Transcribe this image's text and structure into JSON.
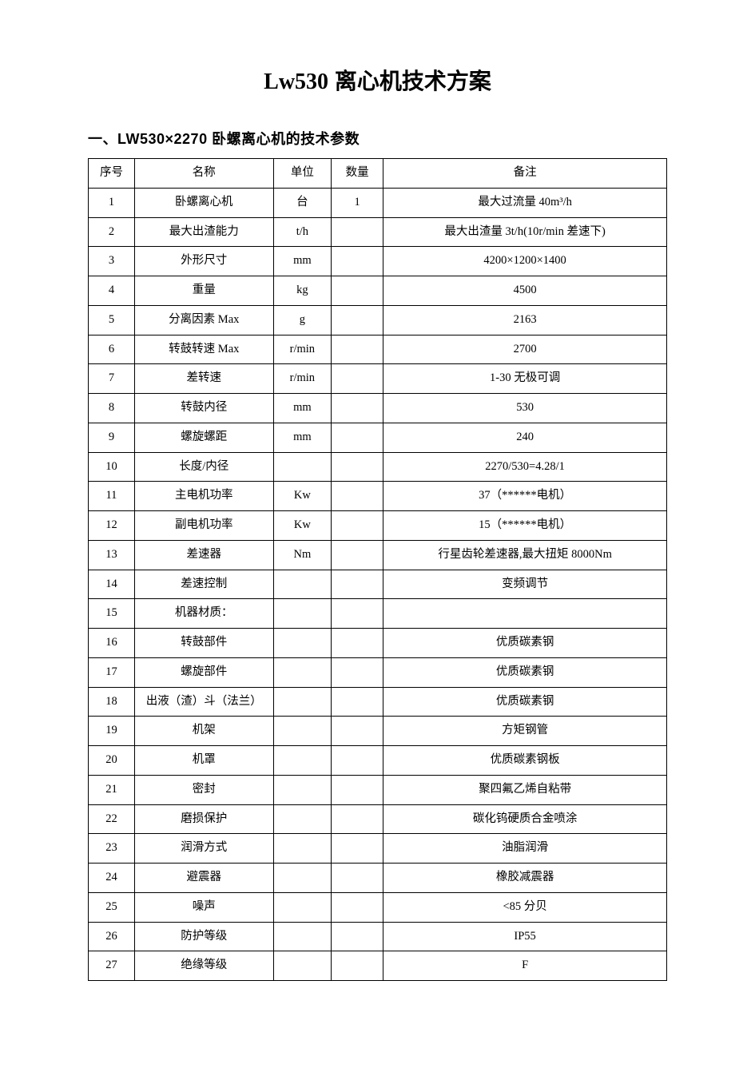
{
  "title_model": "Lw530",
  "title_rest": " 离心机技术方案",
  "section_heading": "一、LW530×2270 卧螺离心机的技术参数",
  "table": {
    "columns": [
      "序号",
      "名称",
      "单位",
      "数量",
      "备注"
    ],
    "col_widths_pct": [
      8,
      24,
      10,
      9,
      49
    ],
    "border_color": "#000000",
    "background_color": "#ffffff",
    "font_size_pt": 14.5,
    "rows": [
      {
        "seq": "1",
        "name": "卧螺离心机",
        "unit": "台",
        "qty": "1",
        "note": "最大过流量 40m³/h"
      },
      {
        "seq": "2",
        "name": "最大出渣能力",
        "unit": "t/h",
        "qty": "",
        "note": "最大出渣量 3t/h(10r/min 差速下)"
      },
      {
        "seq": "3",
        "name": "外形尺寸",
        "unit": "mm",
        "qty": "",
        "note": "4200×1200×1400"
      },
      {
        "seq": "4",
        "name": "重量",
        "unit": "kg",
        "qty": "",
        "note": "4500"
      },
      {
        "seq": "5",
        "name": "分离因素 Max",
        "unit": "g",
        "qty": "",
        "note": "2163"
      },
      {
        "seq": "6",
        "name": "转鼓转速 Max",
        "unit": "r/min",
        "qty": "",
        "note": "2700"
      },
      {
        "seq": "7",
        "name": "差转速",
        "unit": "r/min",
        "qty": "",
        "note": "1-30 无极可调"
      },
      {
        "seq": "8",
        "name": "转鼓内径",
        "unit": "mm",
        "qty": "",
        "note": "530"
      },
      {
        "seq": "9",
        "name": "螺旋螺距",
        "unit": "mm",
        "qty": "",
        "note": "240"
      },
      {
        "seq": "10",
        "name": "长度/内径",
        "unit": "",
        "qty": "",
        "note": "2270/530=4.28/1"
      },
      {
        "seq": "11",
        "name": "主电机功率",
        "unit": "Kw",
        "qty": "",
        "note": "37（******电机）"
      },
      {
        "seq": "12",
        "name": "副电机功率",
        "unit": "Kw",
        "qty": "",
        "note": "15（******电机）"
      },
      {
        "seq": "13",
        "name": "差速器",
        "unit": "Nm",
        "qty": "",
        "note": "行星齿轮差速器,最大扭矩 8000Nm"
      },
      {
        "seq": "14",
        "name": "差速控制",
        "unit": "",
        "qty": "",
        "note": "变频调节"
      },
      {
        "seq": "15",
        "name": "机器材质：",
        "unit": "",
        "qty": "",
        "note": ""
      },
      {
        "seq": "16",
        "name": "转鼓部件",
        "unit": "",
        "qty": "",
        "note": "优质碳素钢"
      },
      {
        "seq": "17",
        "name": "螺旋部件",
        "unit": "",
        "qty": "",
        "note": "优质碳素钢"
      },
      {
        "seq": "18",
        "name": "出液（渣）斗（法兰）",
        "unit": "",
        "qty": "",
        "note": "优质碳素钢"
      },
      {
        "seq": "19",
        "name": "机架",
        "unit": "",
        "qty": "",
        "note": "方矩钢管"
      },
      {
        "seq": "20",
        "name": "机罩",
        "unit": "",
        "qty": "",
        "note": "优质碳素钢板"
      },
      {
        "seq": "21",
        "name": "密封",
        "unit": "",
        "qty": "",
        "note": "聚四氟乙烯自粘带"
      },
      {
        "seq": "22",
        "name": "磨损保护",
        "unit": "",
        "qty": "",
        "note": "碳化钨硬质合金喷涂"
      },
      {
        "seq": "23",
        "name": "润滑方式",
        "unit": "",
        "qty": "",
        "note": "油脂润滑"
      },
      {
        "seq": "24",
        "name": "避震器",
        "unit": "",
        "qty": "",
        "note": "橡胶减震器"
      },
      {
        "seq": "25",
        "name": "噪声",
        "unit": "",
        "qty": "",
        "note": "<85 分贝"
      },
      {
        "seq": "26",
        "name": "防护等级",
        "unit": "",
        "qty": "",
        "note": "IP55"
      },
      {
        "seq": "27",
        "name": "绝缘等级",
        "unit": "",
        "qty": "",
        "note": "F"
      }
    ]
  }
}
